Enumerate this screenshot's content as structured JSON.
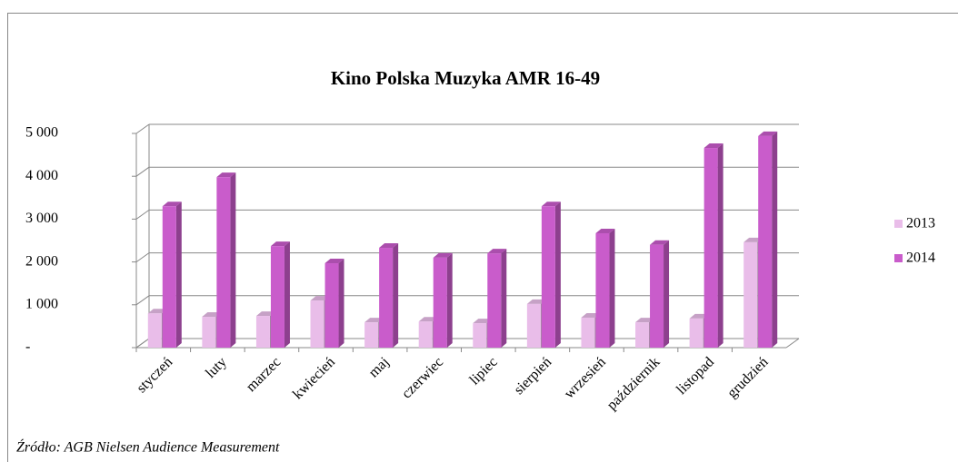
{
  "chart_data": {
    "type": "bar",
    "title": "Kino Polska Muzyka  AMR 16-49",
    "note": "Źródło: AGB Nielsen Audience Measurement",
    "categories": [
      "styczeń",
      "luty",
      "marzec",
      "kwiecień",
      "maj",
      "czerwiec",
      "lipiec",
      "sierpień",
      "wrzesień",
      "październik",
      "listopad",
      "grudzień"
    ],
    "series": [
      {
        "name": "2013",
        "color": "#e9bde9",
        "values": [
          800,
          720,
          740,
          1100,
          590,
          610,
          570,
          1020,
          700,
          590,
          680,
          2460
        ]
      },
      {
        "name": "2014",
        "color": "#c95ccb",
        "values": [
          3300,
          3980,
          2370,
          1970,
          2330,
          2100,
          2200,
          3300,
          2670,
          2400,
          4660,
          4940
        ]
      }
    ],
    "ylim": [
      0,
      5000
    ],
    "yticks": [
      {
        "value": 0,
        "label": "-"
      },
      {
        "value": 1000,
        "label": "1 000"
      },
      {
        "value": 2000,
        "label": "2 000"
      },
      {
        "value": 3000,
        "label": "3 000"
      },
      {
        "value": 4000,
        "label": "4 000"
      },
      {
        "value": 5000,
        "label": "5 000"
      }
    ],
    "grid": true,
    "legend": "right"
  }
}
